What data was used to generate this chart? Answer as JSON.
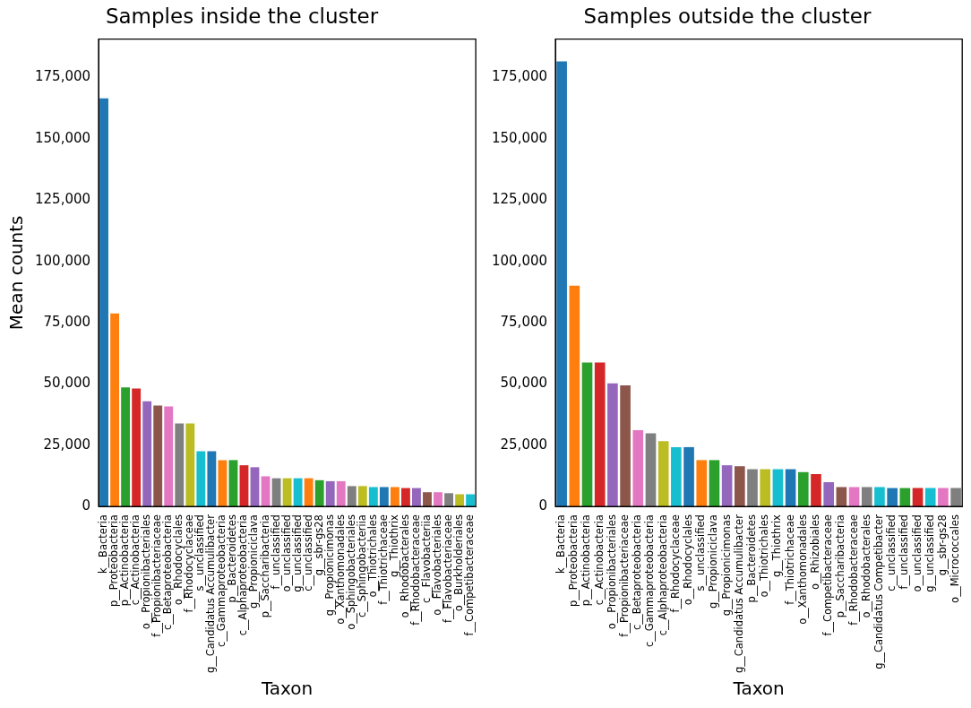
{
  "chart_data": [
    {
      "type": "bar",
      "title": "Samples inside the cluster",
      "xlabel": "Taxon",
      "ylabel": "Mean counts",
      "categories": [
        "k__Bacteria",
        "p__Proteobacteria",
        "p__Actinobacteria",
        "c__Actinobacteria",
        "o__Propionibacteriales",
        "f__Propionibacteriaceae",
        "c__Betaproteobacteria",
        "o__Rhodocyclales",
        "f__Rhodocyclaceae",
        "s__unclassified",
        "g__Candidatus Accumulibacter",
        "c__Gammaproteobacteria",
        "p__Bacteroidetes",
        "c__Alphaproteobacteria",
        "g__Propioniciclava",
        "p__Saccharibacteria",
        "f__unclassified",
        "o__unclassified",
        "g__unclassified",
        "c__unclassified",
        "g__sbr-gs28",
        "g__Propionicimonas",
        "o__Xanthomonadales",
        "o__Sphingobacteriales",
        "c__Sphingobacteriia",
        "o__Thiotrichales",
        "f__Thiotrichaceae",
        "g__Thiothrix",
        "o__Rhodobacterales",
        "f__Rhodobacteraceae",
        "c__Flavobacteriia",
        "o__Flavobacteriales",
        "f__Flavobacteriaceae",
        "o__Burkholderiales",
        "f__Competibacteraceae"
      ],
      "values": [
        166500,
        78700,
        48600,
        48100,
        42900,
        41200,
        40800,
        33900,
        33900,
        22500,
        22500,
        18900,
        18900,
        16800,
        16000,
        12300,
        11500,
        11500,
        11500,
        11500,
        10700,
        10300,
        10300,
        8300,
        8300,
        7900,
        7900,
        7900,
        7500,
        7500,
        5800,
        5800,
        5400,
        5000,
        5000
      ],
      "colors": [
        "#1f77b4",
        "#ff7f0e",
        "#2ca02c",
        "#d62728",
        "#9467bd",
        "#8c564b",
        "#e377c2",
        "#7f7f7f",
        "#bcbd22",
        "#17becf",
        "#1f77b4",
        "#ff7f0e",
        "#2ca02c",
        "#d62728",
        "#9467bd",
        "#e377c2",
        "#7f7f7f",
        "#bcbd22",
        "#17becf",
        "#ff7f0e",
        "#2ca02c",
        "#9467bd",
        "#e377c2",
        "#7f7f7f",
        "#bcbd22",
        "#17becf",
        "#1f77b4",
        "#ff7f0e",
        "#d62728",
        "#9467bd",
        "#8c564b",
        "#e377c2",
        "#7f7f7f",
        "#bcbd22",
        "#17becf"
      ],
      "ylim": [
        0,
        190700
      ],
      "yticks": [
        0,
        {
          "value": 25000,
          "label": "25,000"
        },
        {
          "value": 50000,
          "label": "50,000"
        },
        {
          "value": 75000,
          "label": "75,000"
        },
        {
          "value": 100000,
          "label": "100,000"
        },
        {
          "value": 125000,
          "label": "125,000"
        },
        {
          "value": 150000,
          "label": "150,000"
        },
        {
          "value": 175000,
          "label": "175,000"
        }
      ],
      "grid": false,
      "legend": false
    },
    {
      "type": "bar",
      "title": "Samples outside the cluster",
      "xlabel": "Taxon",
      "categories": [
        "k__Bacteria",
        "p__Proteobacteria",
        "p__Actinobacteria",
        "c__Actinobacteria",
        "o__Propionibacteriales",
        "f__Propionibacteriaceae",
        "c__Betaproteobacteria",
        "c__Gammaproteobacteria",
        "c__Alphaproteobacteria",
        "f__Rhodocyclaceae",
        "o__Rhodocyclales",
        "s__unclassified",
        "g__Propioniciclava",
        "g__Propionicimonas",
        "g__Candidatus Accumulibacter",
        "p__Bacteroidetes",
        "o__Thiotrichales",
        "g__Thiothrix",
        "f__Thiotrichaceae",
        "o__Xanthomonadales",
        "o__Rhizobiales",
        "f__Competibacteraceae",
        "p__Saccharibacteria",
        "f__Rhodobacteraceae",
        "o__Rhodobacterales",
        "g__Candidatus Competibacter",
        "c__unclassified",
        "f__unclassified",
        "o__unclassified",
        "g__unclassified",
        "g__sbr-gs28",
        "o__Micrococcales"
      ],
      "values": [
        181600,
        90100,
        58700,
        58700,
        50200,
        49400,
        31100,
        29800,
        26600,
        24200,
        24200,
        18900,
        18900,
        16800,
        16400,
        15200,
        15200,
        15200,
        15200,
        14000,
        13200,
        9900,
        7900,
        7900,
        7900,
        7900,
        7500,
        7500,
        7500,
        7500,
        7500,
        7500
      ],
      "colors": [
        "#1f77b4",
        "#ff7f0e",
        "#2ca02c",
        "#d62728",
        "#9467bd",
        "#8c564b",
        "#e377c2",
        "#7f7f7f",
        "#bcbd22",
        "#17becf",
        "#1f77b4",
        "#ff7f0e",
        "#2ca02c",
        "#9467bd",
        "#8c564b",
        "#7f7f7f",
        "#bcbd22",
        "#17becf",
        "#1f77b4",
        "#2ca02c",
        "#d62728",
        "#9467bd",
        "#8c564b",
        "#e377c2",
        "#7f7f7f",
        "#17becf",
        "#1f77b4",
        "#2ca02c",
        "#d62728",
        "#17becf",
        "#e377c2",
        "#7f7f7f"
      ],
      "ylim": [
        0,
        190700
      ],
      "yticks": [
        0,
        {
          "value": 25000,
          "label": "25,000"
        },
        {
          "value": 50000,
          "label": "50,000"
        },
        {
          "value": 75000,
          "label": "75,000"
        },
        {
          "value": 100000,
          "label": "100,000"
        },
        {
          "value": 125000,
          "label": "125,000"
        },
        {
          "value": 150000,
          "label": "150,000"
        },
        {
          "value": 175000,
          "label": "175,000"
        }
      ],
      "grid": false,
      "legend": false
    }
  ]
}
